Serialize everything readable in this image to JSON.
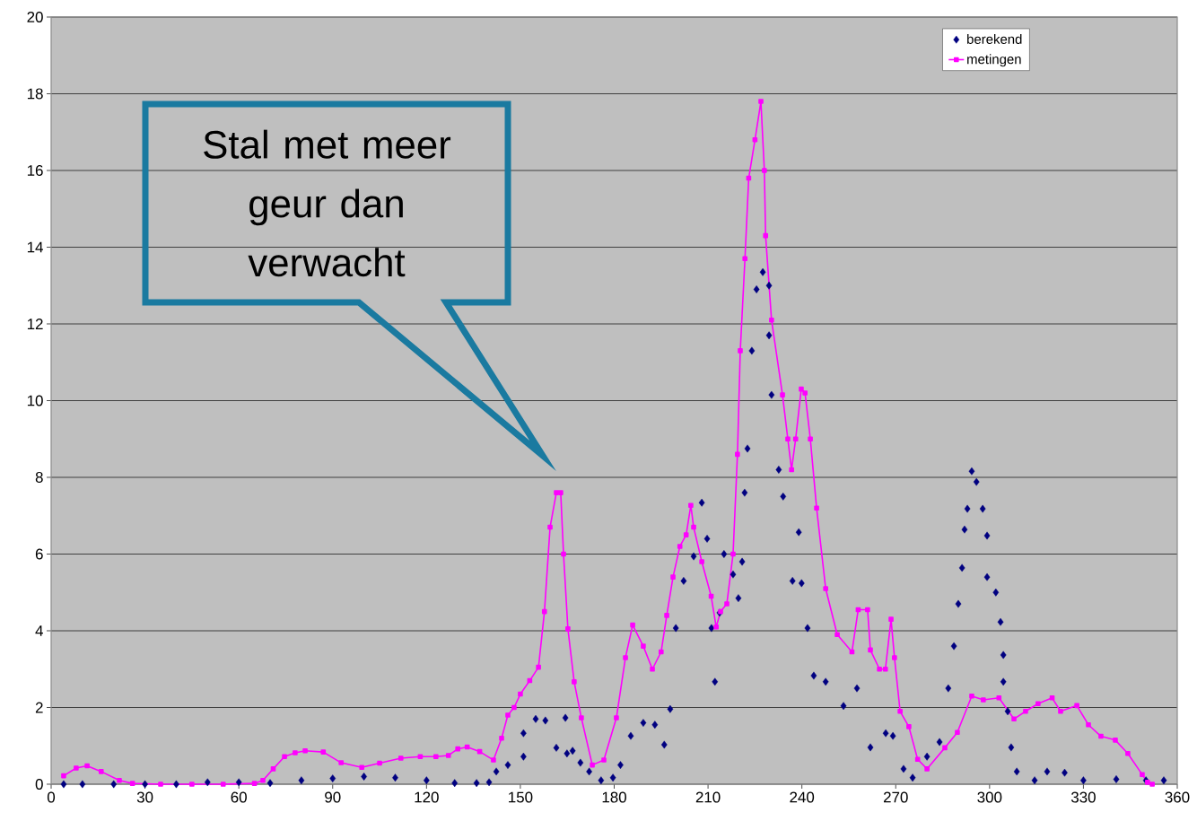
{
  "chart_data": {
    "type": "line",
    "xlim": [
      0,
      360
    ],
    "ylim": [
      0,
      20
    ],
    "xticks": [
      0,
      30,
      60,
      90,
      120,
      150,
      180,
      210,
      240,
      270,
      300,
      330,
      360
    ],
    "yticks": [
      0,
      2,
      4,
      6,
      8,
      10,
      12,
      14,
      16,
      18,
      20
    ],
    "grid": "y",
    "legend": "top right",
    "annotations": [
      "Stal met meer geur dan verwacht"
    ],
    "series": [
      {
        "name": "berekend",
        "type": "scatter",
        "marker": "diamond",
        "color": "#000080",
        "x": [
          4,
          10,
          20,
          30,
          40,
          50,
          60,
          70,
          80,
          90,
          100,
          110,
          120,
          129,
          136,
          140,
          142.3,
          146,
          151,
          151,
          154.9,
          158,
          161.5,
          164.4,
          164.9,
          166.7,
          169.2,
          172,
          175.8,
          179.6,
          182,
          185.3,
          189.3,
          193,
          196,
          197.9,
          199.7,
          202.2,
          205.4,
          208,
          209.7,
          211.1,
          212.2,
          213.7,
          215.1,
          218,
          219.7,
          220.9,
          221.7,
          222.6,
          224,
          225.5,
          227.5,
          229.5,
          229.5,
          230.3,
          232.6,
          234,
          237,
          239,
          239.9,
          241.8,
          243.8,
          247.6,
          253.3,
          257.6,
          261.9,
          266.8,
          269.1,
          272.5,
          275.4,
          280,
          284,
          286.8,
          288.6,
          290,
          291.2,
          292,
          292.9,
          294.3,
          295.8,
          297.8,
          299.2,
          299.2,
          302,
          303.5,
          304.4,
          304.4,
          305.8,
          306.9,
          308.7,
          314.4,
          318.4,
          324,
          330,
          340.5,
          350,
          355.7
        ],
        "values": [
          0,
          0,
          0,
          0,
          0,
          0.05,
          0.05,
          0.03,
          0.1,
          0.15,
          0.2,
          0.17,
          0.1,
          0.03,
          0.03,
          0.05,
          0.33,
          0.5,
          0.72,
          1.33,
          1.7,
          1.66,
          0.95,
          1.73,
          0.8,
          0.87,
          0.56,
          0.33,
          0.1,
          0.17,
          0.5,
          1.26,
          1.6,
          1.55,
          1.03,
          1.96,
          4.07,
          5.3,
          5.94,
          7.34,
          6.4,
          4.07,
          2.67,
          4.47,
          6.0,
          5.47,
          4.85,
          5.8,
          7.6,
          8.75,
          11.3,
          12.9,
          13.35,
          13.0,
          11.7,
          10.15,
          8.2,
          7.5,
          5.3,
          6.57,
          5.24,
          4.07,
          2.83,
          2.67,
          2.04,
          2.5,
          0.96,
          1.33,
          1.26,
          0.4,
          0.17,
          0.72,
          1.1,
          2.5,
          3.6,
          4.7,
          5.64,
          6.64,
          7.18,
          8.16,
          7.88,
          7.18,
          6.48,
          5.4,
          5.0,
          4.23,
          3.37,
          2.67,
          1.9,
          0.96,
          0.33,
          0.1,
          0.33,
          0.3,
          0.1,
          0.13,
          0.1,
          0.1
        ]
      },
      {
        "name": "metingen",
        "marker": "square",
        "color": "#ff00ff",
        "x": [
          4,
          8,
          11.5,
          16,
          21.8,
          26,
          35,
          45,
          55,
          65,
          67.7,
          71,
          74.6,
          78,
          81.2,
          87,
          92.7,
          99.3,
          105,
          111.8,
          118,
          123,
          127,
          130,
          133,
          137,
          141.4,
          144,
          146,
          148,
          150,
          153,
          155.8,
          157.7,
          159.5,
          161.5,
          162.9,
          163.8,
          165.2,
          167.2,
          169.5,
          173,
          176.7,
          180.7,
          183.6,
          185.9,
          189.3,
          192.2,
          195,
          196.8,
          198.8,
          201,
          203,
          204.5,
          205.4,
          208,
          211,
          212.6,
          214,
          216,
          218,
          219.4,
          220.3,
          221.8,
          223,
          225,
          226.9,
          228,
          228.4,
          230.3,
          233.8,
          235.5,
          236.7,
          238,
          239.8,
          241,
          242.7,
          244.7,
          247.6,
          251.3,
          256,
          258,
          261,
          261.9,
          264.8,
          266.7,
          268.5,
          269.6,
          271.4,
          274.2,
          277,
          280,
          285.7,
          289.7,
          294.3,
          298,
          303,
          307.8,
          311.5,
          315.5,
          320,
          322.7,
          327.9,
          331.6,
          335.6,
          340.2,
          344.2,
          348.8,
          350.5,
          352
        ],
        "values": [
          0.22,
          0.42,
          0.48,
          0.33,
          0.1,
          0.02,
          0,
          0,
          0,
          0.02,
          0.1,
          0.4,
          0.72,
          0.82,
          0.87,
          0.84,
          0.56,
          0.44,
          0.55,
          0.68,
          0.72,
          0.72,
          0.75,
          0.92,
          0.97,
          0.85,
          0.63,
          1.2,
          1.8,
          2.0,
          2.35,
          2.7,
          3.05,
          4.5,
          6.7,
          7.6,
          7.6,
          6.0,
          4.05,
          2.67,
          1.73,
          0.5,
          0.63,
          1.73,
          3.3,
          4.15,
          3.6,
          3.0,
          3.45,
          4.4,
          5.4,
          6.2,
          6.5,
          7.27,
          6.7,
          5.8,
          4.9,
          4.1,
          4.5,
          4.7,
          6.0,
          8.6,
          11.3,
          13.7,
          15.8,
          16.8,
          17.8,
          16.0,
          14.3,
          12.1,
          10.15,
          9.0,
          8.2,
          9.0,
          10.3,
          10.2,
          9.0,
          7.2,
          5.1,
          3.9,
          3.45,
          4.55,
          4.55,
          3.5,
          3.0,
          3.0,
          4.3,
          3.3,
          1.9,
          1.5,
          0.65,
          0.4,
          0.95,
          1.35,
          2.3,
          2.2,
          2.25,
          1.7,
          1.9,
          2.1,
          2.25,
          1.9,
          2.05,
          1.55,
          1.25,
          1.15,
          0.8,
          0.25,
          0.05,
          0
        ]
      }
    ]
  }
}
